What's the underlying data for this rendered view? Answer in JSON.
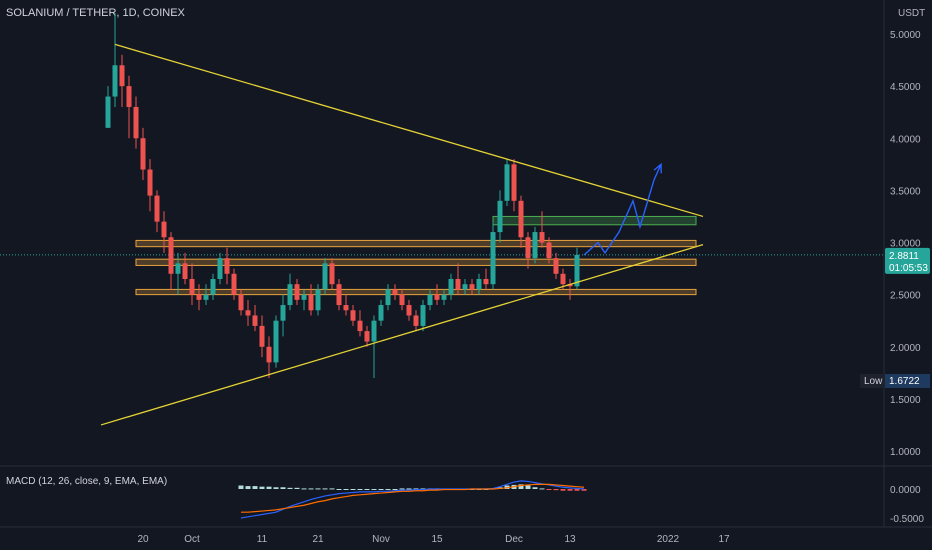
{
  "header": {
    "symbol_title": "SOLANIUM / TETHER, 1D, COINEX",
    "currency": "USDT"
  },
  "price_badge": {
    "price": "2.8811",
    "countdown": "01:05:53"
  },
  "low_badge": {
    "label": "Low",
    "value": "1.6722"
  },
  "macd": {
    "title": "MACD (12, 26, close, 9, EMA, EMA)"
  },
  "colors": {
    "background": "#131722",
    "bull": "#26a69a",
    "bear": "#ef5350",
    "trendline": "#e6d335",
    "zone_orange": "#e8a33c",
    "zone_green": "#4caf50",
    "projection": "#2962ff",
    "macd_line": "#2962ff",
    "signal_line": "#ff6d00",
    "hist_pos": "#b2dfdb",
    "hist_neg": "#ef5350"
  },
  "chart_data": [
    {
      "type": "candlestick",
      "title": "SOLANIUM / TETHER, 1D, COINEX",
      "ylabel": "USDT",
      "ylim": [
        1.0,
        5.2
      ],
      "y_ticks": [
        "5.0000",
        "4.5000",
        "4.0000",
        "3.5000",
        "3.0000",
        "2.5000",
        "2.0000",
        "1.5000",
        "1.0000"
      ],
      "y_tick_values": [
        5.0,
        4.5,
        4.0,
        3.5,
        3.0,
        2.5,
        2.0,
        1.5,
        1.0
      ],
      "x_ticks": [
        "20",
        "Oct",
        "11",
        "21",
        "Nov",
        "15",
        "Dec",
        "13",
        "2022",
        "17"
      ],
      "x_tick_index": [
        5,
        12,
        22,
        30,
        39,
        47,
        58,
        66,
        80,
        88
      ],
      "grid": false,
      "last_price": 2.8811,
      "low": 1.6722,
      "candles": [
        [
          4.1,
          4.5,
          4.1,
          4.4
        ],
        [
          4.4,
          5.2,
          4.3,
          4.7
        ],
        [
          4.7,
          4.8,
          4.3,
          4.5
        ],
        [
          4.5,
          4.6,
          4.0,
          4.3
        ],
        [
          4.3,
          4.4,
          3.9,
          4.0
        ],
        [
          4.0,
          4.1,
          3.6,
          3.7
        ],
        [
          3.7,
          3.8,
          3.3,
          3.45
        ],
        [
          3.45,
          3.5,
          3.1,
          3.2
        ],
        [
          3.2,
          3.3,
          2.9,
          3.05
        ],
        [
          3.05,
          3.1,
          2.55,
          2.7
        ],
        [
          2.7,
          2.9,
          2.5,
          2.8
        ],
        [
          2.8,
          2.9,
          2.6,
          2.65
        ],
        [
          2.65,
          2.8,
          2.4,
          2.5
        ],
        [
          2.5,
          2.6,
          2.35,
          2.45
        ],
        [
          2.45,
          2.6,
          2.4,
          2.5
        ],
        [
          2.5,
          2.7,
          2.45,
          2.65
        ],
        [
          2.65,
          2.9,
          2.6,
          2.85
        ],
        [
          2.85,
          2.95,
          2.6,
          2.7
        ],
        [
          2.7,
          2.75,
          2.45,
          2.5
        ],
        [
          2.5,
          2.55,
          2.3,
          2.35
        ],
        [
          2.35,
          2.45,
          2.2,
          2.3
        ],
        [
          2.3,
          2.4,
          2.15,
          2.2
        ],
        [
          2.2,
          2.3,
          1.9,
          2.0
        ],
        [
          2.0,
          2.1,
          1.7,
          1.85
        ],
        [
          1.85,
          2.3,
          1.8,
          2.25
        ],
        [
          2.25,
          2.5,
          2.1,
          2.4
        ],
        [
          2.4,
          2.7,
          2.35,
          2.6
        ],
        [
          2.6,
          2.65,
          2.4,
          2.45
        ],
        [
          2.45,
          2.55,
          2.35,
          2.5
        ],
        [
          2.5,
          2.6,
          2.3,
          2.35
        ],
        [
          2.35,
          2.6,
          2.3,
          2.55
        ],
        [
          2.55,
          2.85,
          2.5,
          2.8
        ],
        [
          2.8,
          2.85,
          2.55,
          2.6
        ],
        [
          2.6,
          2.65,
          2.35,
          2.4
        ],
        [
          2.4,
          2.5,
          2.3,
          2.35
        ],
        [
          2.35,
          2.4,
          2.2,
          2.25
        ],
        [
          2.25,
          2.35,
          2.1,
          2.15
        ],
        [
          2.15,
          2.2,
          2.0,
          2.05
        ],
        [
          2.05,
          2.3,
          1.7,
          2.25
        ],
        [
          2.25,
          2.45,
          2.2,
          2.4
        ],
        [
          2.4,
          2.6,
          2.35,
          2.55
        ],
        [
          2.55,
          2.6,
          2.45,
          2.5
        ],
        [
          2.5,
          2.55,
          2.35,
          2.4
        ],
        [
          2.4,
          2.45,
          2.25,
          2.3
        ],
        [
          2.3,
          2.35,
          2.15,
          2.2
        ],
        [
          2.2,
          2.45,
          2.15,
          2.4
        ],
        [
          2.4,
          2.55,
          2.35,
          2.5
        ],
        [
          2.5,
          2.6,
          2.4,
          2.45
        ],
        [
          2.45,
          2.55,
          2.4,
          2.5
        ],
        [
          2.5,
          2.7,
          2.45,
          2.65
        ],
        [
          2.65,
          2.8,
          2.5,
          2.55
        ],
        [
          2.55,
          2.65,
          2.5,
          2.6
        ],
        [
          2.6,
          2.65,
          2.5,
          2.55
        ],
        [
          2.55,
          2.7,
          2.5,
          2.65
        ],
        [
          2.65,
          2.75,
          2.55,
          2.6
        ],
        [
          2.6,
          3.2,
          2.55,
          3.1
        ],
        [
          3.1,
          3.5,
          3.0,
          3.4
        ],
        [
          3.4,
          3.8,
          3.35,
          3.75
        ],
        [
          3.75,
          3.8,
          3.3,
          3.4
        ],
        [
          3.4,
          3.45,
          2.95,
          3.05
        ],
        [
          3.05,
          3.1,
          2.75,
          2.85
        ],
        [
          2.85,
          3.15,
          2.8,
          3.1
        ],
        [
          3.1,
          3.3,
          2.95,
          3.0
        ],
        [
          3.0,
          3.05,
          2.8,
          2.85
        ],
        [
          2.85,
          2.9,
          2.65,
          2.7
        ],
        [
          2.7,
          2.75,
          2.55,
          2.6
        ],
        [
          2.6,
          2.65,
          2.45,
          2.58
        ],
        [
          2.58,
          2.95,
          2.55,
          2.8811
        ]
      ]
    },
    {
      "type": "histogram+line",
      "title": "MACD (12, 26, close, 9, EMA, EMA)",
      "y_ticks": [
        "0.0000",
        "-0.5000"
      ],
      "y_tick_values": [
        0.0,
        -0.5
      ],
      "ylim": [
        -0.55,
        0.2
      ],
      "start_index": 19,
      "macd": [
        -0.5,
        -0.48,
        -0.46,
        -0.44,
        -0.42,
        -0.4,
        -0.35,
        -0.3,
        -0.26,
        -0.22,
        -0.18,
        -0.15,
        -0.12,
        -0.1,
        -0.08,
        -0.07,
        -0.06,
        -0.05,
        -0.05,
        -0.05,
        -0.04,
        -0.04,
        -0.03,
        -0.02,
        -0.02,
        -0.01,
        -0.01,
        0.0,
        0.0,
        0.0,
        0.0,
        0.0,
        0.0,
        0.0,
        0.0,
        0.0,
        0.01,
        0.04,
        0.08,
        0.12,
        0.14,
        0.13,
        0.11,
        0.09,
        0.07,
        0.05,
        0.03,
        0.02,
        0.01,
        0.0
      ],
      "signal": [
        -0.4,
        -0.4,
        -0.39,
        -0.38,
        -0.37,
        -0.36,
        -0.34,
        -0.32,
        -0.3,
        -0.28,
        -0.25,
        -0.22,
        -0.2,
        -0.17,
        -0.15,
        -0.13,
        -0.11,
        -0.1,
        -0.09,
        -0.08,
        -0.07,
        -0.06,
        -0.05,
        -0.04,
        -0.04,
        -0.03,
        -0.03,
        -0.02,
        -0.02,
        -0.01,
        -0.01,
        -0.01,
        -0.01,
        0.0,
        0.0,
        0.0,
        0.0,
        0.01,
        0.02,
        0.04,
        0.06,
        0.07,
        0.08,
        0.08,
        0.08,
        0.07,
        0.06,
        0.05,
        0.04,
        0.03
      ],
      "histogram": [
        0.06,
        0.05,
        0.05,
        0.04,
        0.04,
        0.03,
        0.03,
        0.02,
        0.02,
        0.01,
        0.01,
        0.01,
        0.01,
        0.01,
        0.0,
        0.0,
        0.0,
        0.0,
        0.0,
        0.0,
        0.0,
        0.0,
        0.0,
        0.01,
        0.01,
        0.01,
        0.01,
        0.01,
        0.01,
        0.0,
        0.0,
        0.0,
        0.0,
        0.0,
        0.0,
        0.0,
        0.01,
        0.03,
        0.06,
        0.07,
        0.08,
        0.06,
        0.03,
        0.01,
        -0.01,
        -0.02,
        -0.03,
        -0.03,
        -0.03,
        -0.03
      ]
    }
  ],
  "drawings": {
    "trendlines": [
      {
        "name": "upper-trendline",
        "from": [
          1,
          4.9
        ],
        "to": [
          85,
          3.25
        ]
      },
      {
        "name": "lower-trendline",
        "from": [
          -1,
          1.25
        ],
        "to": [
          85,
          2.98
        ]
      }
    ],
    "zones": [
      {
        "name": "green-zone",
        "color": "green",
        "from": 55,
        "to": 84,
        "low": 3.17,
        "high": 3.25
      },
      {
        "name": "orange-zone-upper",
        "color": "orange",
        "from": 4,
        "to": 84,
        "low": 2.96,
        "high": 3.02
      },
      {
        "name": "orange-zone-middle",
        "color": "orange",
        "from": 4,
        "to": 84,
        "low": 2.78,
        "high": 2.84
      },
      {
        "name": "orange-zone-lower",
        "color": "orange",
        "from": 4,
        "to": 84,
        "low": 2.5,
        "high": 2.55
      }
    ],
    "projection": [
      [
        68,
        2.88
      ],
      [
        70,
        3.0
      ],
      [
        71,
        2.9
      ],
      [
        73,
        3.1
      ],
      [
        75,
        3.4
      ],
      [
        76,
        3.15
      ],
      [
        78,
        3.6
      ],
      [
        79,
        3.75
      ]
    ],
    "last_price_line": 2.8811
  }
}
